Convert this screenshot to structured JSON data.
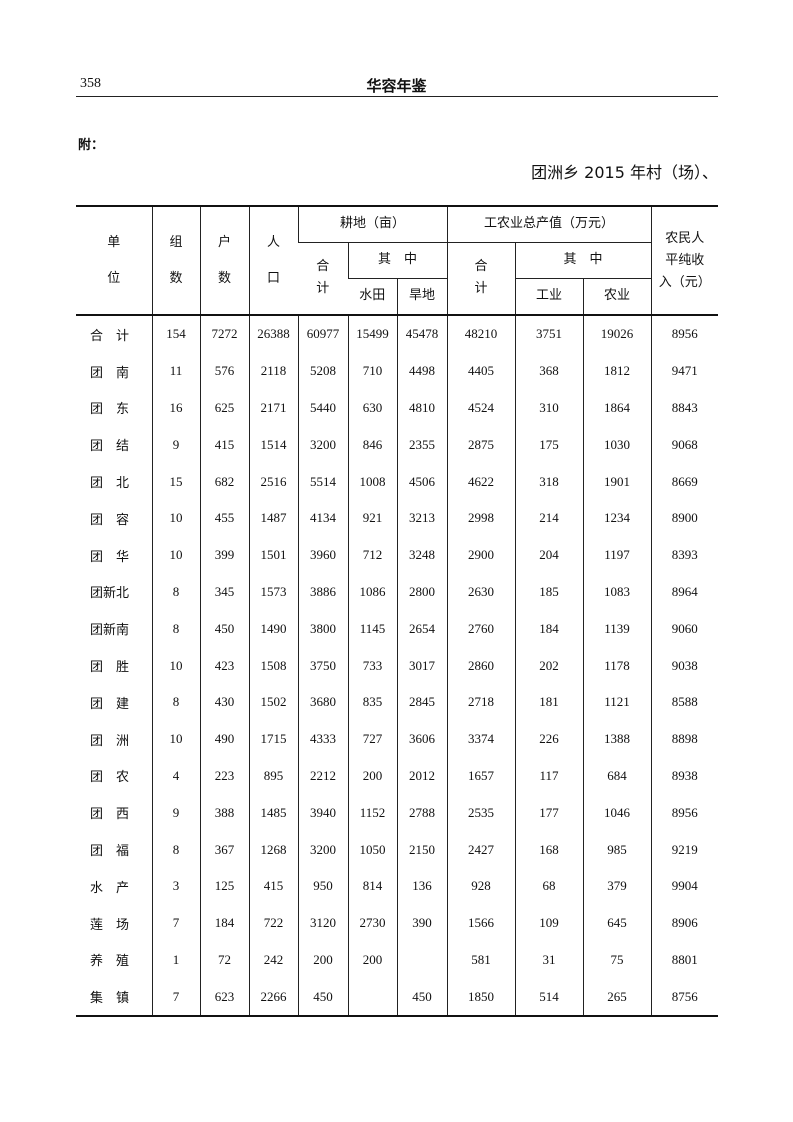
{
  "header": {
    "page_number": "358",
    "running_title": "华容年鉴"
  },
  "note": "附：",
  "table_title": "团洲乡 2015 年村（场）、",
  "table": {
    "headers": {
      "unit": [
        "单",
        "位"
      ],
      "groups": [
        "组",
        "数"
      ],
      "households": [
        "户",
        "数"
      ],
      "population": [
        "人",
        "口"
      ],
      "farmland": "耕地（亩）",
      "farmland_total": [
        "合",
        "计"
      ],
      "farmland_of_which": "其　中",
      "paddy": "水田",
      "dryland": "旱地",
      "output": "工农业总产值（万元）",
      "output_total": [
        "合",
        "计"
      ],
      "output_of_which": "其　中",
      "industry": "工业",
      "agriculture": "农业",
      "income": [
        "农民人",
        "平纯收",
        "入（元）"
      ]
    },
    "rows": [
      [
        "合　计",
        "154",
        "7272",
        "26388",
        "60977",
        "15499",
        "45478",
        "48210",
        "3751",
        "19026",
        "8956"
      ],
      [
        "团　南",
        "11",
        "576",
        "2118",
        "5208",
        "710",
        "4498",
        "4405",
        "368",
        "1812",
        "9471"
      ],
      [
        "团　东",
        "16",
        "625",
        "2171",
        "5440",
        "630",
        "4810",
        "4524",
        "310",
        "1864",
        "8843"
      ],
      [
        "团　结",
        "9",
        "415",
        "1514",
        "3200",
        "846",
        "2355",
        "2875",
        "175",
        "1030",
        "9068"
      ],
      [
        "团　北",
        "15",
        "682",
        "2516",
        "5514",
        "1008",
        "4506",
        "4622",
        "318",
        "1901",
        "8669"
      ],
      [
        "团　容",
        "10",
        "455",
        "1487",
        "4134",
        "921",
        "3213",
        "2998",
        "214",
        "1234",
        "8900"
      ],
      [
        "团　华",
        "10",
        "399",
        "1501",
        "3960",
        "712",
        "3248",
        "2900",
        "204",
        "1197",
        "8393"
      ],
      [
        "团新北",
        "8",
        "345",
        "1573",
        "3886",
        "1086",
        "2800",
        "2630",
        "185",
        "1083",
        "8964"
      ],
      [
        "团新南",
        "8",
        "450",
        "1490",
        "3800",
        "1145",
        "2654",
        "2760",
        "184",
        "1139",
        "9060"
      ],
      [
        "团　胜",
        "10",
        "423",
        "1508",
        "3750",
        "733",
        "3017",
        "2860",
        "202",
        "1178",
        "9038"
      ],
      [
        "团　建",
        "8",
        "430",
        "1502",
        "3680",
        "835",
        "2845",
        "2718",
        "181",
        "1121",
        "8588"
      ],
      [
        "团　洲",
        "10",
        "490",
        "1715",
        "4333",
        "727",
        "3606",
        "3374",
        "226",
        "1388",
        "8898"
      ],
      [
        "团　农",
        "4",
        "223",
        "895",
        "2212",
        "200",
        "2012",
        "1657",
        "117",
        "684",
        "8938"
      ],
      [
        "团　西",
        "9",
        "388",
        "1485",
        "3940",
        "1152",
        "2788",
        "2535",
        "177",
        "1046",
        "8956"
      ],
      [
        "团　福",
        "8",
        "367",
        "1268",
        "3200",
        "1050",
        "2150",
        "2427",
        "168",
        "985",
        "9219"
      ],
      [
        "水　产",
        "3",
        "125",
        "415",
        "950",
        "814",
        "136",
        "928",
        "68",
        "379",
        "9904"
      ],
      [
        "莲　场",
        "7",
        "184",
        "722",
        "3120",
        "2730",
        "390",
        "1566",
        "109",
        "645",
        "8906"
      ],
      [
        "养　殖",
        "1",
        "72",
        "242",
        "200",
        "200",
        "",
        "581",
        "31",
        "75",
        "8801"
      ],
      [
        "集　镇",
        "7",
        "623",
        "2266",
        "450",
        "",
        "450",
        "1850",
        "514",
        "265",
        "8756"
      ]
    ]
  }
}
